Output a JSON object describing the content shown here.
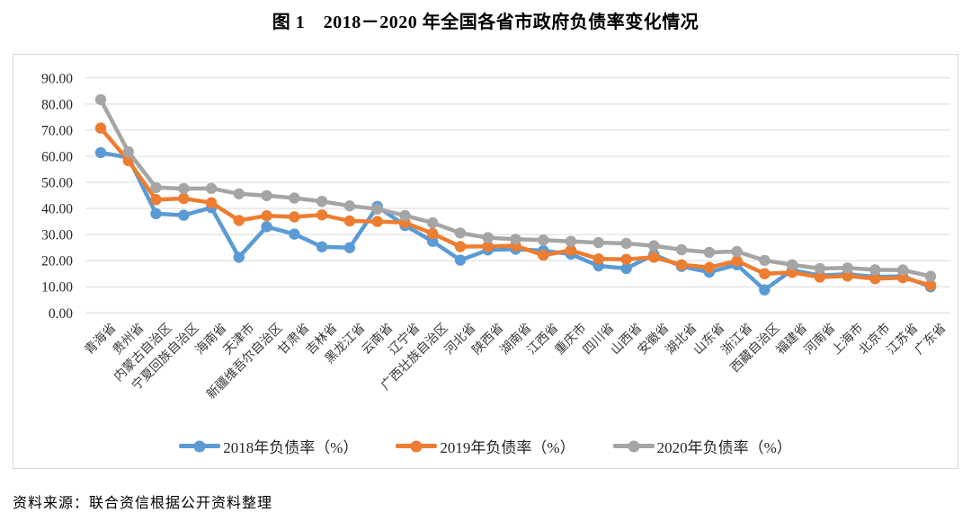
{
  "figure": {
    "title": "图 1　2018－2020 年全国各省市政府负债率变化情况",
    "source_note": "资料来源：联合资信根据公开资料整理"
  },
  "chart_data": {
    "type": "line",
    "title": "图 1　2018－2020 年全国各省市政府负债率变化情况",
    "xlabel": "",
    "ylabel": "负债率（%）",
    "ylim": [
      0,
      90
    ],
    "y_tick_step": 10,
    "y_ticks": [
      "90.00",
      "80.00",
      "70.00",
      "60.00",
      "50.00",
      "40.00",
      "30.00",
      "20.00",
      "10.00",
      "0.00"
    ],
    "grid": "horizontal",
    "gridline_color": "#d9d9d9",
    "legend_position": "bottom",
    "marker": "circle",
    "categories": [
      "青海省",
      "贵州省",
      "内蒙古自治区",
      "宁夏回族自治区",
      "海南省",
      "天津市",
      "新疆维吾尔自治区",
      "甘肃省",
      "吉林省",
      "黑龙江省",
      "云南省",
      "辽宁省",
      "广西壮族自治区",
      "河北省",
      "陕西省",
      "湖南省",
      "江西省",
      "重庆市",
      "四川省",
      "山西省",
      "安徽省",
      "湖北省",
      "山东省",
      "浙江省",
      "西藏自治区",
      "福建省",
      "河南省",
      "上海市",
      "北京市",
      "江苏省",
      "广东省"
    ],
    "series": [
      {
        "name": "2018年负债率（%）",
        "color": "#5B9BD5",
        "values": [
          61.4,
          59.5,
          38.0,
          37.4,
          40.3,
          21.3,
          33.0,
          30.2,
          25.3,
          25.0,
          40.8,
          33.5,
          27.4,
          20.2,
          24.1,
          24.4,
          23.8,
          22.5,
          18.0,
          17.0,
          22.3,
          17.8,
          15.6,
          18.4,
          8.8,
          16.4,
          14.3,
          14.8,
          13.8,
          14.0,
          10.0
        ]
      },
      {
        "name": "2019年负债率（%）",
        "color": "#ED7D31",
        "values": [
          70.8,
          58.3,
          43.4,
          43.8,
          42.2,
          35.4,
          37.2,
          36.8,
          37.5,
          35.2,
          35.0,
          34.6,
          30.4,
          25.4,
          25.5,
          25.7,
          22.1,
          24.0,
          20.7,
          20.5,
          21.3,
          18.4,
          17.4,
          19.9,
          15.0,
          15.5,
          13.7,
          14.1,
          13.1,
          13.5,
          10.6
        ]
      },
      {
        "name": "2020年负债率（%）",
        "color": "#A5A5A5",
        "values": [
          81.7,
          61.7,
          48.0,
          47.6,
          47.7,
          45.6,
          44.9,
          44.0,
          42.7,
          41.0,
          39.8,
          37.3,
          34.5,
          30.6,
          28.8,
          28.2,
          27.9,
          27.4,
          26.9,
          26.6,
          25.7,
          24.2,
          23.2,
          23.5,
          20.1,
          18.4,
          17.0,
          17.2,
          16.5,
          16.4,
          14.0
        ]
      }
    ]
  }
}
